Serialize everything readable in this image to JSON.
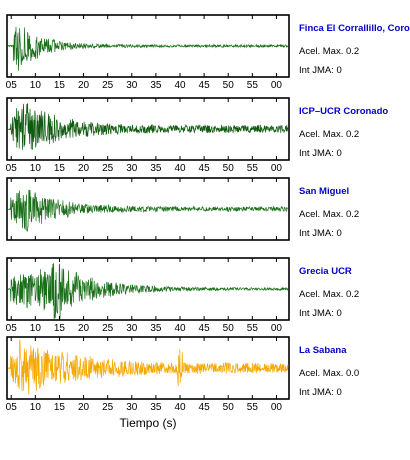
{
  "chart_data": {
    "type": "line",
    "xlabel": "Tiempo (s)",
    "x_tick_labels": [
      "05",
      "10",
      "15",
      "20",
      "25",
      "30",
      "35",
      "40",
      "45",
      "50",
      "55",
      "00"
    ],
    "colors": {
      "normal": "#1a6e1a",
      "dark": "#0f5a0f",
      "highlight": "#f5a800",
      "station_name": "#0000cc"
    },
    "panels": [
      {
        "name": "Finca El Corrallillo, Coro",
        "accel": "Acel. Max. 0.2",
        "jma": "Int JMA: 0",
        "color_key": "normal",
        "onset": 0.02,
        "peak_at": 0.03,
        "decay": 4.0,
        "amplitude": 1.0,
        "noise": 0.05
      },
      {
        "name": "ICP–UCR Coronado",
        "accel": "Acel. Max. 0.2",
        "jma": "Int JMA: 0",
        "color_key": "dark",
        "onset": 0.01,
        "peak_at": 0.05,
        "decay": 2.8,
        "amplitude": 1.0,
        "noise": 0.15
      },
      {
        "name": "San Miguel",
        "accel": "Acel. Max. 0.2",
        "jma": "Int JMA: 0",
        "color_key": "normal",
        "onset": 0.01,
        "peak_at": 0.06,
        "decay": 3.0,
        "amplitude": 0.85,
        "noise": 0.1
      },
      {
        "name": "Grecia UCR",
        "accel": "Acel. Max. 0.2",
        "jma": "Int JMA: 0",
        "color_key": "normal",
        "onset": 0.01,
        "peak_at": 0.18,
        "decay": 2.5,
        "amplitude": 0.95,
        "noise": 0.05
      },
      {
        "name": "La Sabana",
        "accel": "Acel. Max. 0.0",
        "jma": "Int JMA: 0",
        "color_key": "highlight",
        "onset": 0.01,
        "peak_at": 0.04,
        "decay": 1.8,
        "amplitude": 0.95,
        "noise": 0.2
      }
    ]
  }
}
